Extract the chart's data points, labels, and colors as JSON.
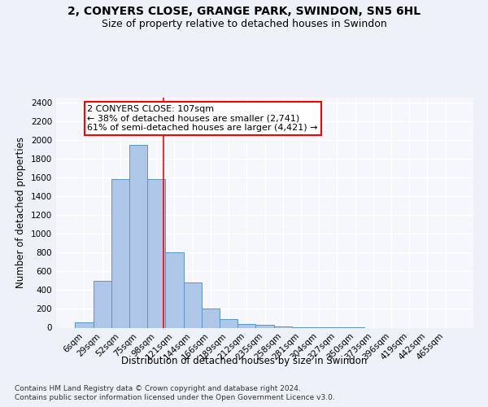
{
  "title_line1": "2, CONYERS CLOSE, GRANGE PARK, SWINDON, SN5 6HL",
  "title_line2": "Size of property relative to detached houses in Swindon",
  "xlabel": "Distribution of detached houses by size in Swindon",
  "ylabel": "Number of detached properties",
  "footer_line1": "Contains HM Land Registry data © Crown copyright and database right 2024.",
  "footer_line2": "Contains public sector information licensed under the Open Government Licence v3.0.",
  "bar_labels": [
    "6sqm",
    "29sqm",
    "52sqm",
    "75sqm",
    "98sqm",
    "121sqm",
    "144sqm",
    "166sqm",
    "189sqm",
    "212sqm",
    "235sqm",
    "258sqm",
    "281sqm",
    "304sqm",
    "327sqm",
    "350sqm",
    "373sqm",
    "396sqm",
    "419sqm",
    "442sqm",
    "465sqm"
  ],
  "bar_values": [
    60,
    500,
    1580,
    1950,
    1580,
    800,
    480,
    200,
    90,
    35,
    28,
    15,
    8,
    5,
    3,
    2,
    0,
    0,
    0,
    0,
    0
  ],
  "bar_color": "#aec6e8",
  "bar_edge_color": "#5a96c8",
  "vline_x": 4.39,
  "vline_color": "red",
  "annotation_line1": "2 CONYERS CLOSE: 107sqm",
  "annotation_line2": "← 38% of detached houses are smaller (2,741)",
  "annotation_line3": "61% of semi-detached houses are larger (4,421) →",
  "annotation_box_color": "white",
  "annotation_box_edge_color": "red",
  "ylim": [
    0,
    2450
  ],
  "yticks": [
    0,
    200,
    400,
    600,
    800,
    1000,
    1200,
    1400,
    1600,
    1800,
    2000,
    2200,
    2400
  ],
  "bg_color": "#eef2f8",
  "plot_bg_color": "#f5f7fc",
  "grid_color": "white",
  "title_fontsize": 10,
  "subtitle_fontsize": 9,
  "axis_label_fontsize": 8.5,
  "tick_fontsize": 7.5,
  "annotation_fontsize": 8,
  "footer_fontsize": 6.5
}
